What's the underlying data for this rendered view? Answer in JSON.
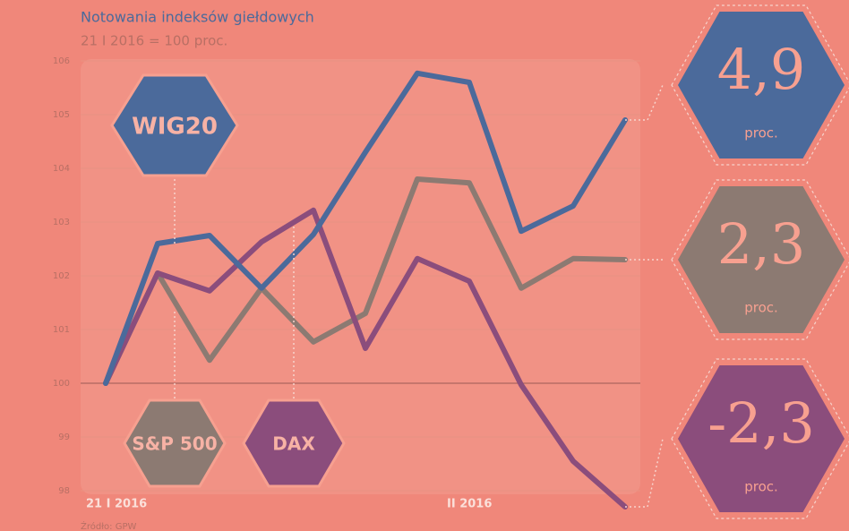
{
  "chart_data": {
    "type": "line",
    "title": "Notowania indeksów giełdowych",
    "subtitle": "21 I 2016 = 100 proc.",
    "categories": [
      "21 I 2016",
      null,
      null,
      null,
      null,
      null,
      null,
      "II 2016",
      null,
      null,
      null
    ],
    "series": [
      {
        "name": "WIG20",
        "color": "#4b6a9b",
        "values": [
          100,
          102.6,
          102.75,
          101.77,
          102.77,
          104.3,
          105.77,
          105.6,
          102.83,
          103.3,
          104.9
        ],
        "end_label": "4,9",
        "end_unit": "proc."
      },
      {
        "name": "S&P 500",
        "color": "#8c7a72",
        "values": [
          100,
          102.05,
          100.43,
          101.77,
          100.77,
          101.3,
          103.8,
          103.73,
          101.77,
          102.32,
          102.3
        ],
        "end_label": "2,3",
        "end_unit": "proc."
      },
      {
        "name": "DAX",
        "color": "#8b4d7c",
        "values": [
          100,
          102.05,
          101.72,
          102.63,
          103.22,
          100.65,
          102.32,
          101.9,
          99.97,
          98.55,
          97.7
        ],
        "end_label": "-2,3",
        "end_unit": "proc."
      }
    ],
    "ylim": [
      98,
      106
    ],
    "yticks": [
      98,
      99,
      100,
      101,
      102,
      103,
      104,
      105,
      106
    ],
    "grid": true,
    "source": "Źródło: GPW"
  }
}
